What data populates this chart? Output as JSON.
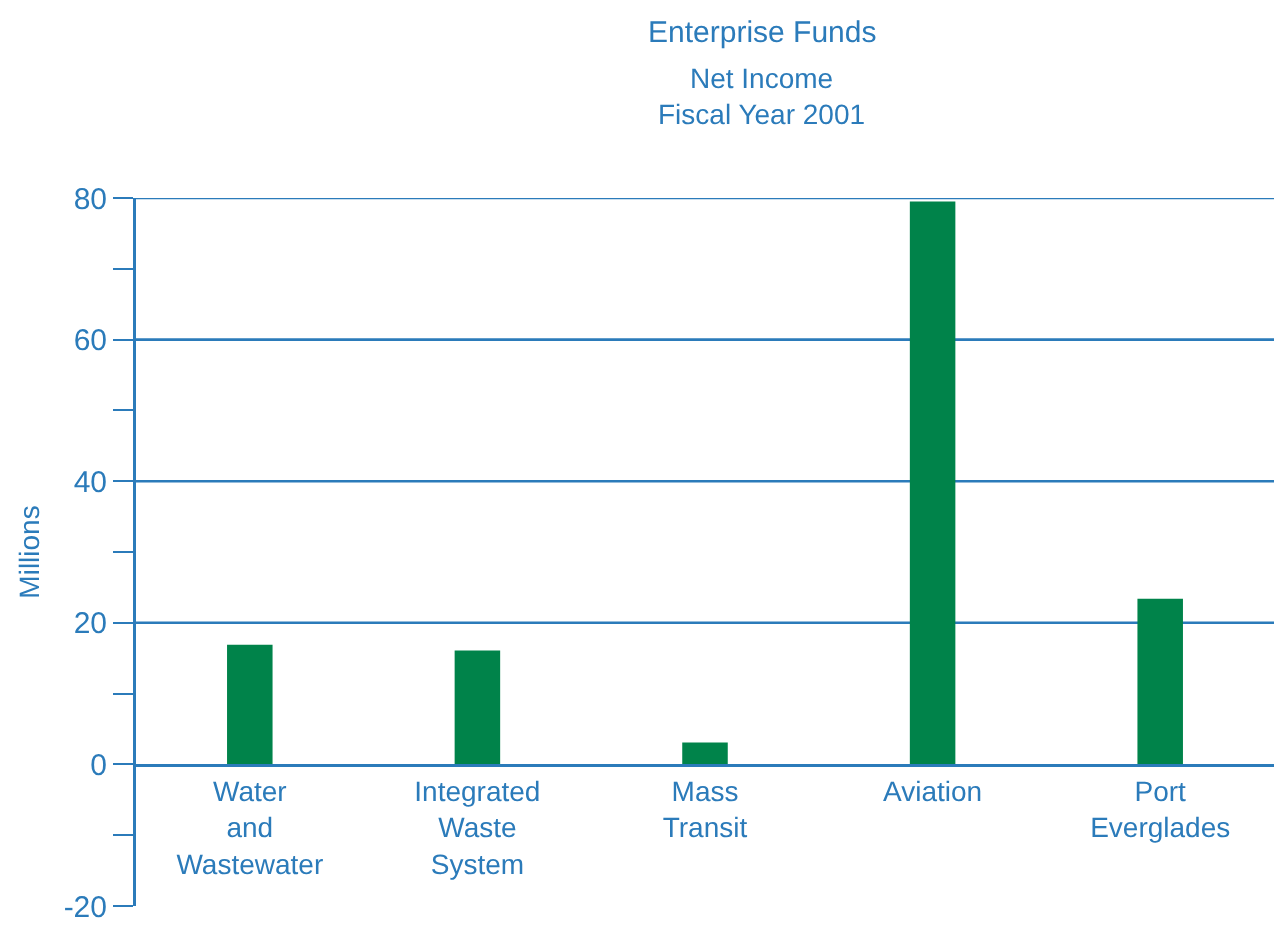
{
  "chart_data": {
    "type": "bar",
    "title": "Enterprise Funds",
    "subtitle": "Net Income\nFiscal Year 2001",
    "ylabel": "Millions",
    "categories": [
      "Water and Wastewater",
      "Integrated Waste System",
      "Mass Transit",
      "Aviation",
      "Port Everglades"
    ],
    "values": [
      16.9,
      16.1,
      3.1,
      79.5,
      23.4
    ],
    "color": "#00834a",
    "ylim": [
      -20,
      80
    ],
    "yticks": [
      -20,
      {
        "value": -10,
        "label": null
      },
      0,
      {
        "value": 10,
        "label": null
      },
      20,
      {
        "value": 30,
        "label": null
      },
      40,
      {
        "value": 50,
        "label": null
      },
      60,
      {
        "value": 70,
        "label": null
      },
      80
    ],
    "grid": "y"
  }
}
